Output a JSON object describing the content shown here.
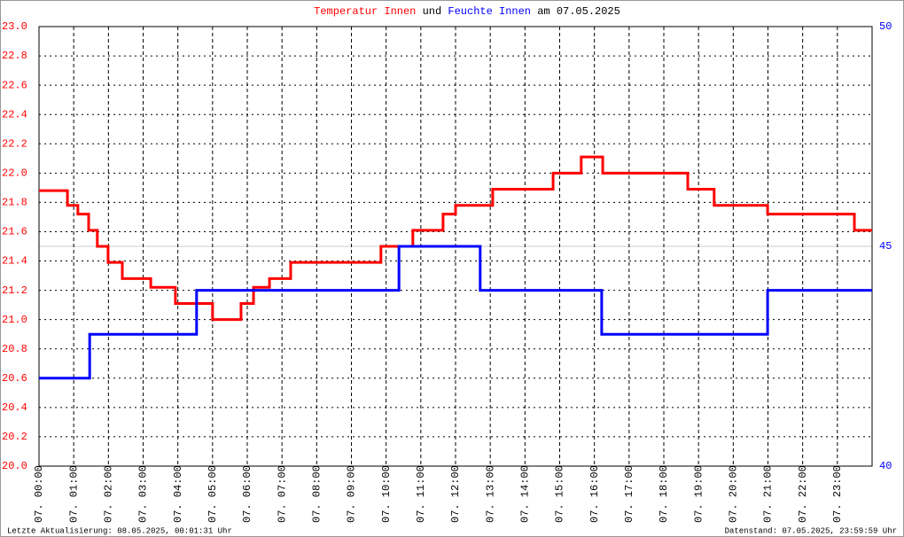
{
  "chart_data": {
    "type": "line",
    "title": {
      "connector": "und",
      "suffix": "am 07.05.2025"
    },
    "footer_left": "Letzte Aktualisierung: 08.05.2025, 00:01:31 Uhr",
    "footer_right": "Datenstand: 07.05.2025, 23:59:59 Uhr",
    "xlim": [
      0,
      24
    ],
    "xticks": [
      {
        "value": 0,
        "label": "07. 00:00"
      },
      {
        "value": 1,
        "label": "07. 01:00"
      },
      {
        "value": 2,
        "label": "07. 02:00"
      },
      {
        "value": 3,
        "label": "07. 03:00"
      },
      {
        "value": 4,
        "label": "07. 04:00"
      },
      {
        "value": 5,
        "label": "07. 05:00"
      },
      {
        "value": 6,
        "label": "07. 06:00"
      },
      {
        "value": 7,
        "label": "07. 07:00"
      },
      {
        "value": 8,
        "label": "07. 08:00"
      },
      {
        "value": 9,
        "label": "07. 09:00"
      },
      {
        "value": 10,
        "label": "07. 10:00"
      },
      {
        "value": 11,
        "label": "07. 11:00"
      },
      {
        "value": 12,
        "label": "07. 12:00"
      },
      {
        "value": 13,
        "label": "07. 13:00"
      },
      {
        "value": 14,
        "label": "07. 14:00"
      },
      {
        "value": 15,
        "label": "07. 15:00"
      },
      {
        "value": 16,
        "label": "07. 16:00"
      },
      {
        "value": 17,
        "label": "07. 17:00"
      },
      {
        "value": 18,
        "label": "07. 18:00"
      },
      {
        "value": 19,
        "label": "07. 19:00"
      },
      {
        "value": 20,
        "label": "07. 20:00"
      },
      {
        "value": 21,
        "label": "07. 21:00"
      },
      {
        "value": 22,
        "label": "07. 22:00"
      },
      {
        "value": 23,
        "label": "07. 23:00"
      }
    ],
    "ylim": [
      20,
      23
    ],
    "yticks": [
      {
        "value": 20,
        "label": "20.0"
      },
      20.2,
      20.4,
      20.6,
      20.8,
      {
        "value": 21,
        "label": "21.0"
      },
      21.2,
      21.4,
      21.6,
      21.8,
      {
        "value": 22,
        "label": "22.0"
      },
      22.2,
      22.4,
      22.6,
      22.8,
      {
        "value": 23,
        "label": "23.0"
      }
    ],
    "y2lim": [
      40,
      50
    ],
    "y2ticks": [
      40,
      45,
      50
    ],
    "grid": true,
    "series": [
      {
        "name": "Temperatur Innen",
        "color": "#ff0000",
        "x": [
          0,
          0.82,
          0.82,
          1.12,
          1.12,
          1.43,
          1.43,
          1.68,
          1.68,
          1.99,
          1.99,
          2.4,
          2.4,
          3.22,
          3.22,
          3.93,
          3.93,
          5.0,
          5.0,
          5.82,
          5.82,
          6.18,
          6.18,
          6.64,
          6.64,
          7.25,
          7.25,
          9.85,
          9.85,
          10.77,
          10.77,
          11.64,
          11.64,
          12.0,
          12.0,
          13.07,
          13.07,
          14.81,
          14.81,
          15.62,
          15.62,
          16.24,
          16.24,
          18.69,
          18.69,
          19.45,
          19.45,
          20.99,
          20.99,
          23.49,
          23.49,
          24
        ],
        "values": [
          21.88,
          21.88,
          21.78,
          21.78,
          21.72,
          21.72,
          21.61,
          21.61,
          21.5,
          21.5,
          21.39,
          21.39,
          21.28,
          21.28,
          21.22,
          21.22,
          21.11,
          21.11,
          21.0,
          21.0,
          21.11,
          21.11,
          21.22,
          21.22,
          21.28,
          21.28,
          21.39,
          21.39,
          21.5,
          21.5,
          21.61,
          21.61,
          21.72,
          21.72,
          21.78,
          21.78,
          21.89,
          21.89,
          22.0,
          22.0,
          22.11,
          22.11,
          22.0,
          22.0,
          21.89,
          21.89,
          21.78,
          21.78,
          21.72,
          21.72,
          21.61,
          21.61
        ]
      },
      {
        "name": "Feuchte Innen",
        "color": "#0000ff",
        "axis": "y2",
        "x": [
          0,
          1.46,
          1.46,
          4.54,
          4.54,
          10.37,
          10.37,
          12.71,
          12.71,
          16.21,
          16.21,
          20.99,
          20.99,
          24
        ],
        "values": [
          42,
          42,
          43,
          43,
          44,
          44,
          45,
          45,
          44,
          44,
          43,
          43,
          44,
          44
        ]
      }
    ]
  }
}
